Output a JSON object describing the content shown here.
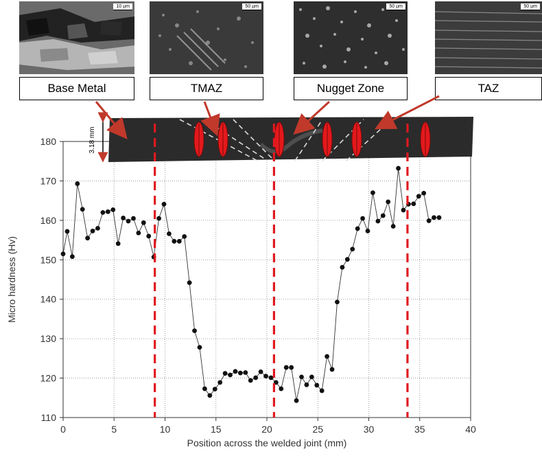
{
  "micrographs": [
    {
      "label": "Base Metal",
      "scale": "10 µm"
    },
    {
      "label": "TMAZ",
      "scale": "50 µm"
    },
    {
      "label": "Nugget Zone",
      "scale": "50 µm"
    },
    {
      "label": "TAZ",
      "scale": "50 µm"
    }
  ],
  "thickness_label": "3.18 mm",
  "colors": {
    "series": "#333333",
    "zone_lines": "#e0191f",
    "indent": "#e3191c",
    "arrows": "#c0392b"
  },
  "chart_data": {
    "type": "line",
    "xlabel": "Position across the welded joint (mm)",
    "ylabel": "Micro hardness (Hv)",
    "xlim": [
      0,
      40
    ],
    "ylim": [
      110,
      180
    ],
    "xticks": [
      0,
      5,
      10,
      15,
      20,
      25,
      30,
      35,
      40
    ],
    "yticks": [
      110,
      120,
      130,
      140,
      150,
      160,
      170,
      180
    ],
    "grid": true,
    "zone_boundaries": [
      9,
      20.7,
      33.8
    ],
    "series": [
      {
        "x": [
          0,
          0.4,
          0.9,
          1.4,
          1.9,
          2.4,
          2.9,
          3.4,
          3.9,
          4.4,
          4.9,
          5.4,
          5.9,
          6.4,
          6.9,
          7.4,
          7.9,
          8.4,
          8.9,
          9.4,
          9.9,
          10.4,
          10.9,
          11.4,
          11.9,
          12.4,
          12.9,
          13.4,
          13.9,
          14.4,
          14.9,
          15.4,
          15.9,
          16.4,
          16.9,
          17.4,
          17.9,
          18.4,
          18.9,
          19.4,
          19.9,
          20.4,
          20.9,
          21.4,
          21.9,
          22.4,
          22.9,
          23.4,
          23.9,
          24.4,
          24.9,
          25.4,
          25.9,
          26.4,
          26.9,
          27.4,
          27.9,
          28.4,
          28.9,
          29.4,
          29.9,
          30.4,
          30.9,
          31.4,
          31.9,
          32.4,
          32.9,
          33.4,
          33.9,
          34.4,
          34.9,
          35.4,
          35.9,
          36.4,
          36.9
        ],
        "values": [
          151.5,
          157.2,
          150.8,
          169.3,
          162.8,
          155.5,
          157.3,
          158,
          162,
          162.2,
          162.7,
          154.1,
          160.6,
          159.8,
          160.5,
          156.8,
          159.4,
          156,
          150.7,
          160.5,
          164.1,
          156.6,
          154.7,
          154.7,
          155.9,
          144.2,
          132,
          127.8,
          117.3,
          115.6,
          117.2,
          118.9,
          121.2,
          120.8,
          121.7,
          121.3,
          121.4,
          119.4,
          120.1,
          121.6,
          120.5,
          120.1,
          118.9,
          117.3,
          122.7,
          122.7,
          114.3,
          120.3,
          118.3,
          120.3,
          118.2,
          116.8,
          125.5,
          122.2,
          139.3,
          148.1,
          150.1,
          152.7,
          157.9,
          160.5,
          157.3,
          167,
          159.8,
          161.2,
          164.7,
          158.5,
          173.2,
          162.6,
          164.1,
          164.2,
          166.1,
          166.9,
          159.9,
          160.7,
          160.7
        ]
      }
    ]
  }
}
